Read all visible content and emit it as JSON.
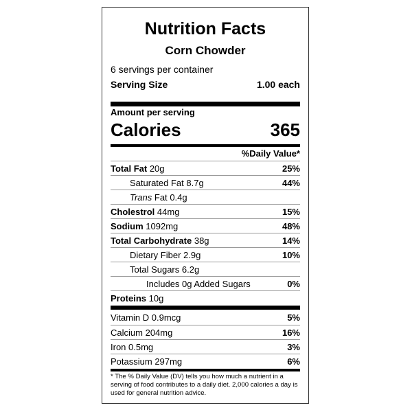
{
  "label": {
    "title": "Nutrition Facts",
    "product_name": "Corn Chowder",
    "servings_per_container": "6 servings per container",
    "serving_size_label": "Serving Size",
    "serving_size_value": "1.00 each",
    "amount_per_serving": "Amount per serving",
    "calories_label": "Calories",
    "calories_value": "365",
    "daily_value_header": "%Daily Value*"
  },
  "nutrients": [
    {
      "name": "Total Fat",
      "amount": "20g",
      "dv": "25%"
    },
    {
      "name": "Saturated Fat",
      "amount": "8.7g",
      "dv": "44%"
    },
    {
      "name": "Trans",
      "name_suffix": "Fat",
      "amount": "0.4g",
      "dv": ""
    },
    {
      "name": "Cholestrol",
      "amount": "44mg",
      "dv": "15%"
    },
    {
      "name": "Sodium",
      "amount": "1092mg",
      "dv": "48%"
    },
    {
      "name": "Total Carbohydrate",
      "amount": "38g",
      "dv": "14%"
    },
    {
      "name": "Dietary Fiber",
      "amount": "2.9g",
      "dv": "10%"
    },
    {
      "name": "Total Sugars",
      "amount": "6.2g",
      "dv": ""
    },
    {
      "name": "Includes 0g Added Sugars",
      "amount": "",
      "dv": "0%"
    },
    {
      "name": "Proteins",
      "amount": "10g",
      "dv": ""
    }
  ],
  "vitamins": [
    {
      "name": "Vitamin D",
      "amount": "0.9mcg",
      "dv": "5%"
    },
    {
      "name": "Calcium",
      "amount": "204mg",
      "dv": "16%"
    },
    {
      "name": "Iron",
      "amount": "0.5mg",
      "dv": "3%"
    },
    {
      "name": "Potassium",
      "amount": "297mg",
      "dv": "6%"
    }
  ],
  "footnote": "* The % Daily Value (DV) tells you how much a nutrient in a serving of food contributes to a daily diet. 2,000 calories a day is used for general nutrition advice."
}
